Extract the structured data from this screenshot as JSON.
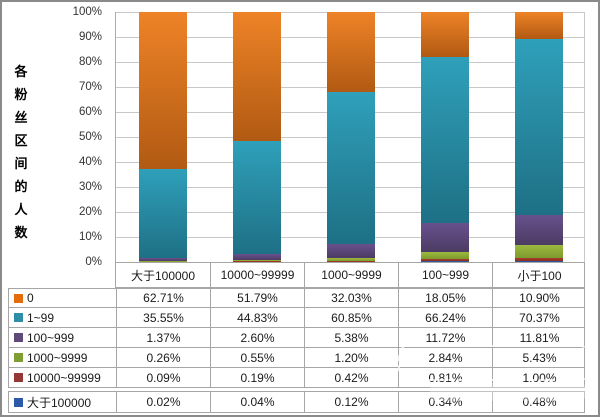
{
  "chart_data": {
    "type": "bar",
    "variant": "100-percent-stacked-column",
    "ylabel": "各粉丝区间的人数",
    "categories": [
      "大于100000",
      "10000~99999",
      "1000~9999",
      "100~999",
      "小于100"
    ],
    "series": [
      {
        "name": "0",
        "values": [
          62.71,
          51.79,
          32.03,
          18.05,
          10.9
        ],
        "swatch": "#E46C0A",
        "fill": [
          "#EE8327",
          "#B15A13"
        ]
      },
      {
        "name": "1~99",
        "values": [
          35.55,
          44.83,
          60.85,
          66.24,
          70.37
        ],
        "swatch": "#2E8FA6",
        "fill": [
          "#2FA0BA",
          "#1E7085"
        ]
      },
      {
        "name": "100~999",
        "values": [
          1.37,
          2.6,
          5.38,
          11.72,
          11.81
        ],
        "swatch": "#5F497A",
        "fill": [
          "#68518D",
          "#4C3B63"
        ]
      },
      {
        "name": "1000~9999",
        "values": [
          0.26,
          0.55,
          1.2,
          2.84,
          5.43
        ],
        "swatch": "#7E9D33",
        "fill": [
          "#9CB93F",
          "#7D9A2D"
        ]
      },
      {
        "name": "10000~99999",
        "values": [
          0.09,
          0.19,
          0.42,
          0.81,
          1.0
        ],
        "swatch": "#953735",
        "fill": [
          "#A83E2C",
          "#8B2F20"
        ]
      },
      {
        "name": "大于100000",
        "values": [
          0.02,
          0.04,
          0.12,
          0.34,
          0.48
        ],
        "swatch": "#2D5AA8",
        "fill": [
          "#3566B5",
          "#24477E"
        ]
      }
    ],
    "y_ticks": [
      "100%",
      "90%",
      "80%",
      "70%",
      "60%",
      "50%",
      "40%",
      "30%",
      "20%",
      "10%",
      "0%"
    ],
    "ylim": [
      0,
      100
    ],
    "grid": true,
    "legend_position": "table-first-column",
    "table_values_format": "two-decimal percent"
  },
  "colors": {
    "gridline": "#C8C8C8",
    "table_border": "#A6A6A6",
    "frame_border": "#8A8A8A",
    "text": "#1A1A1A"
  }
}
